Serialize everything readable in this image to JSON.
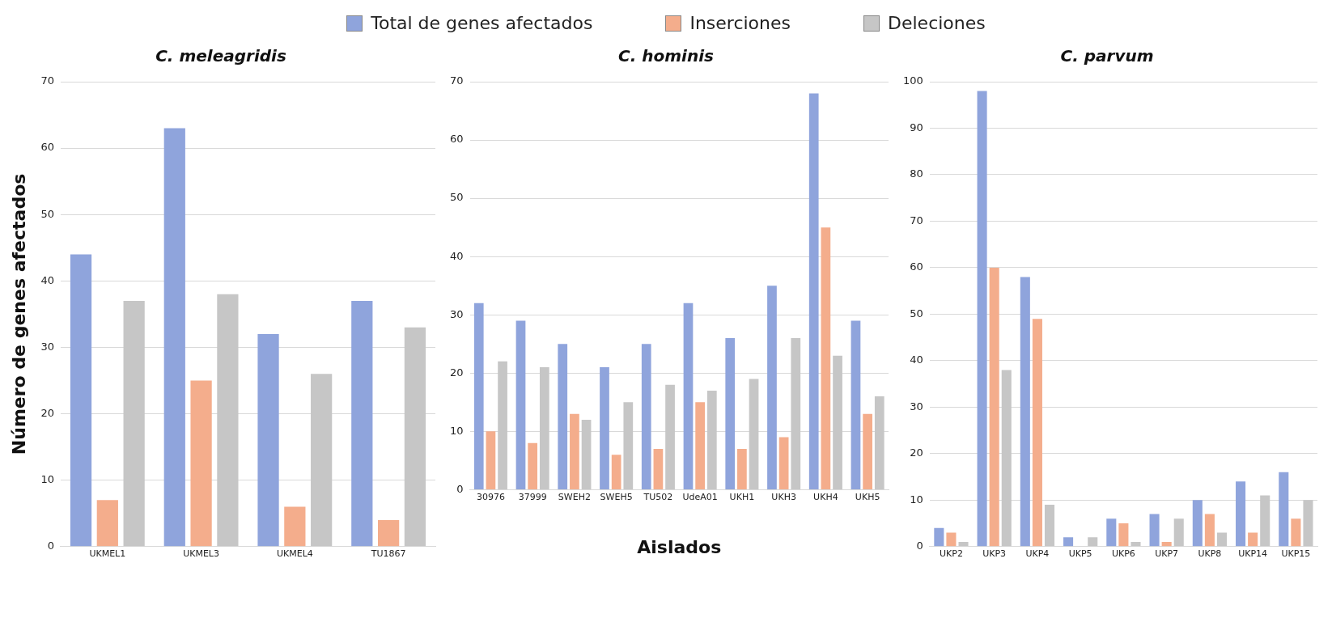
{
  "chart_data": [
    {
      "type": "bar",
      "title": "C. meleagridis",
      "ylabel": "Número de genes afectados",
      "categories": [
        "UKMEL1",
        "UKMEL3",
        "UKMEL4",
        "TU1867"
      ],
      "series": [
        {
          "name": "Total de genes afectados",
          "color": "#8fa4dc",
          "values": [
            44,
            63,
            32,
            37
          ]
        },
        {
          "name": "Inserciones",
          "color": "#f4ad8c",
          "values": [
            7,
            25,
            6,
            4
          ]
        },
        {
          "name": "Deleciones",
          "color": "#c6c6c6",
          "values": [
            37,
            38,
            26,
            33
          ]
        }
      ],
      "ylim": [
        0,
        70
      ],
      "yticks": [
        0,
        10,
        20,
        30,
        40,
        50,
        60,
        70
      ],
      "grid": "y",
      "legend": "top"
    },
    {
      "type": "bar",
      "title": "C. hominis",
      "xlabel": "Aislados",
      "categories": [
        "30976",
        "37999",
        "SWEH2",
        "SWEH5",
        "TU502",
        "UdeA01",
        "UKH1",
        "UKH3",
        "UKH4",
        "UKH5"
      ],
      "series": [
        {
          "color": "#8fa4dc",
          "values": [
            32,
            29,
            25,
            21,
            25,
            32,
            26,
            35,
            68,
            29
          ]
        },
        {
          "color": "#f4ad8c",
          "values": [
            10,
            8,
            13,
            6,
            7,
            15,
            7,
            9,
            45,
            13
          ]
        },
        {
          "color": "#c6c6c6",
          "values": [
            22,
            21,
            12,
            15,
            18,
            17,
            19,
            26,
            23,
            16
          ]
        }
      ],
      "ylim": [
        0,
        70
      ],
      "yticks": [
        0,
        10,
        20,
        30,
        40,
        50,
        60,
        70
      ],
      "grid": "y"
    },
    {
      "type": "bar",
      "title": "C. parvum",
      "categories": [
        "UKP2",
        "UKP3",
        "UKP4",
        "UKP5",
        "UKP6",
        "UKP7",
        "UKP8",
        "UKP14",
        "UKP15"
      ],
      "series": [
        {
          "color": "#8fa4dc",
          "values": [
            4,
            98,
            58,
            2,
            6,
            7,
            10,
            14,
            16
          ]
        },
        {
          "color": "#f4ad8c",
          "values": [
            3,
            60,
            49,
            0,
            5,
            1,
            7,
            3,
            6
          ]
        },
        {
          "color": "#c6c6c6",
          "values": [
            1,
            38,
            9,
            2,
            1,
            6,
            3,
            11,
            10
          ]
        }
      ],
      "ylim": [
        0,
        100
      ],
      "yticks": [
        0,
        10,
        20,
        30,
        40,
        50,
        60,
        70,
        80,
        90,
        100
      ],
      "grid": "y"
    }
  ]
}
